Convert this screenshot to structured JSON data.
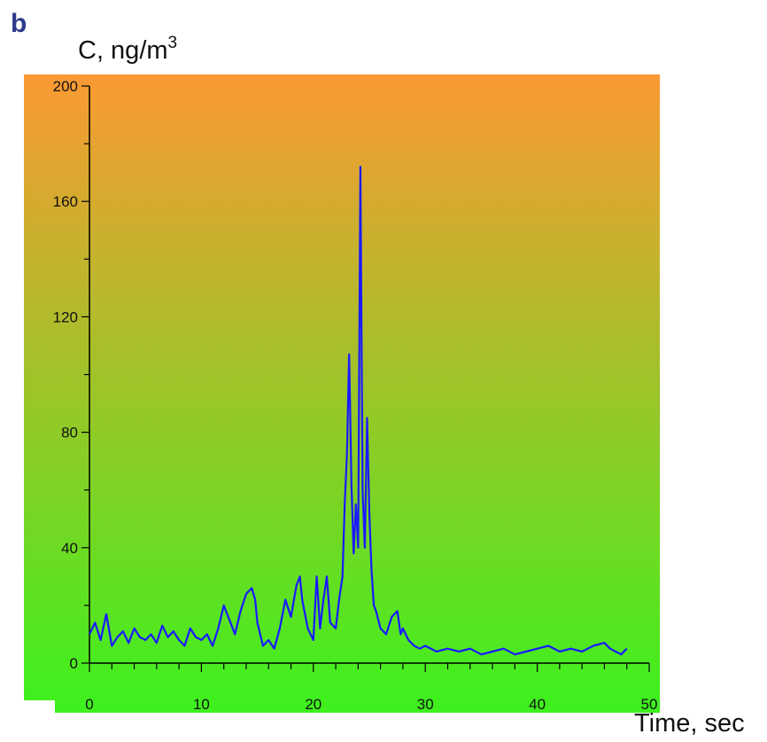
{
  "panel_label": "b",
  "chart_data": {
    "type": "line",
    "ylabel": "C, ng/m",
    "ylabel_sup": "3",
    "xlabel": "Time, sec",
    "xlim": [
      0,
      50
    ],
    "ylim": [
      0,
      200
    ],
    "x_ticks": [
      "0",
      "10",
      "20",
      "30",
      "40",
      "50"
    ],
    "y_ticks": [
      "0",
      "40",
      "80",
      "120",
      "160",
      "200"
    ],
    "background": {
      "top_color": "#fb9933",
      "bottom_color": "#3ff01e"
    },
    "series": [
      {
        "color": "#1a1aff",
        "x": [
          0.0,
          0.5,
          1.0,
          1.5,
          2.0,
          2.5,
          3.0,
          3.5,
          4.0,
          4.5,
          5.0,
          5.5,
          6.0,
          6.5,
          7.0,
          7.5,
          8.0,
          8.5,
          9.0,
          9.5,
          10.0,
          10.5,
          11.0,
          11.5,
          12.0,
          12.5,
          13.0,
          13.5,
          14.0,
          14.5,
          14.8,
          15.0,
          15.5,
          16.0,
          16.5,
          17.0,
          17.5,
          18.0,
          18.5,
          18.8,
          19.0,
          19.5,
          20.0,
          20.3,
          20.6,
          20.9,
          21.2,
          21.5,
          22.0,
          22.3,
          22.6,
          22.8,
          23.0,
          23.2,
          23.4,
          23.6,
          23.8,
          24.0,
          24.2,
          24.4,
          24.6,
          24.8,
          25.0,
          25.2,
          25.4,
          25.6,
          25.8,
          26.0,
          26.5,
          27.0,
          27.5,
          27.8,
          28.0,
          28.5,
          29.0,
          29.5,
          30.0,
          31.0,
          32.0,
          33.0,
          34.0,
          35.0,
          36.0,
          37.0,
          38.0,
          39.0,
          40.0,
          41.0,
          42.0,
          43.0,
          44.0,
          45.0,
          46.0,
          46.5,
          47.0,
          47.5,
          48.0
        ],
        "y": [
          10,
          14,
          8,
          17,
          6,
          9,
          11,
          7,
          12,
          9,
          8,
          10,
          7,
          13,
          9,
          11,
          8,
          6,
          12,
          9,
          8,
          10,
          6,
          12,
          20,
          15,
          10,
          18,
          24,
          26,
          22,
          14,
          6,
          8,
          5,
          12,
          22,
          16,
          27,
          30,
          22,
          12,
          8,
          30,
          12,
          22,
          30,
          14,
          12,
          22,
          30,
          55,
          72,
          107,
          62,
          38,
          55,
          40,
          172,
          60,
          40,
          85,
          52,
          32,
          20,
          18,
          15,
          12,
          10,
          16,
          18,
          10,
          12,
          8,
          6,
          5,
          6,
          4,
          5,
          4,
          5,
          3,
          4,
          5,
          3,
          4,
          5,
          6,
          4,
          5,
          4,
          6,
          7,
          5,
          4,
          3,
          5
        ]
      }
    ]
  }
}
